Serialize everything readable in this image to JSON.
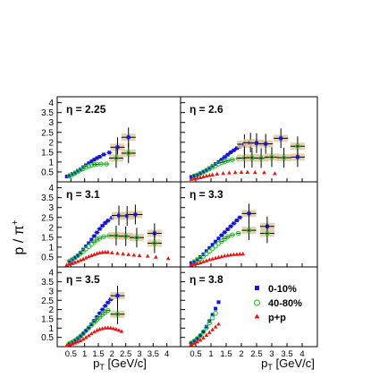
{
  "figure": {
    "ylabel_main": "p / π",
    "ylabel_sup": "+",
    "xlabel_main": "p",
    "xlabel_sub": "T",
    "xlabel_unit": " [GeV/c]"
  },
  "legend": {
    "items": [
      {
        "label": "0-10%",
        "marker": "square",
        "color": "#1414e6"
      },
      {
        "label": "40-80%",
        "marker": "open-circle",
        "color": "#22cc22"
      },
      {
        "label": "p+p",
        "marker": "triangle",
        "color": "#ee1111"
      }
    ]
  },
  "chart_data": [
    {
      "type": "scatter",
      "title": "η = 2.25",
      "xlim": [
        0,
        4.5
      ],
      "ylim": [
        0,
        4.3
      ],
      "x_ticks": [],
      "y_ticks": [
        0.5,
        1,
        1.5,
        2,
        2.5,
        3,
        3.5,
        4
      ],
      "series": [
        {
          "name": "0-10%",
          "color": "#1414e6",
          "marker": "square",
          "x": [
            0.35,
            0.45,
            0.55,
            0.65,
            0.75,
            0.85,
            0.95,
            1.05,
            1.15,
            1.25,
            1.35,
            1.45,
            1.55,
            1.7,
            1.9,
            2.2,
            2.6
          ],
          "y": [
            0.27,
            0.33,
            0.4,
            0.47,
            0.56,
            0.64,
            0.74,
            0.84,
            0.94,
            1.03,
            1.12,
            1.2,
            1.27,
            1.38,
            1.48,
            1.75,
            2.25
          ]
        },
        {
          "name": "40-80%",
          "color": "#22cc22",
          "marker": "open-circle",
          "x": [
            0.45,
            0.55,
            0.65,
            0.75,
            0.85,
            0.95,
            1.05,
            1.15,
            1.25,
            1.35,
            1.45,
            1.6,
            1.8,
            2.15,
            2.6
          ],
          "y": [
            0.3,
            0.36,
            0.44,
            0.52,
            0.6,
            0.67,
            0.74,
            0.79,
            0.84,
            0.87,
            0.89,
            0.9,
            0.9,
            1.2,
            1.45
          ]
        }
      ]
    },
    {
      "type": "scatter",
      "title": "η = 2.6",
      "xlim": [
        0,
        4.5
      ],
      "ylim": [
        0,
        4.3
      ],
      "x_ticks": [],
      "y_ticks": [],
      "series": [
        {
          "name": "0-10%",
          "color": "#1414e6",
          "marker": "square",
          "x": [
            0.35,
            0.45,
            0.55,
            0.65,
            0.75,
            0.85,
            0.95,
            1.05,
            1.15,
            1.25,
            1.35,
            1.45,
            1.55,
            1.65,
            1.75,
            1.85,
            1.95,
            2.1,
            2.3,
            2.5,
            2.8,
            3.3,
            3.85
          ],
          "y": [
            0.25,
            0.3,
            0.36,
            0.44,
            0.52,
            0.6,
            0.7,
            0.8,
            0.9,
            1.0,
            1.12,
            1.25,
            1.37,
            1.49,
            1.59,
            1.7,
            1.79,
            1.9,
            1.98,
            1.96,
            1.92,
            2.2,
            1.25
          ]
        },
        {
          "name": "40-80%",
          "color": "#22cc22",
          "marker": "open-circle",
          "x": [
            0.45,
            0.55,
            0.65,
            0.75,
            0.85,
            0.95,
            1.05,
            1.15,
            1.25,
            1.35,
            1.45,
            1.55,
            1.7,
            1.9,
            2.1,
            2.35,
            2.65,
            3.0,
            3.4,
            3.85
          ],
          "y": [
            0.3,
            0.35,
            0.42,
            0.5,
            0.58,
            0.66,
            0.74,
            0.82,
            0.9,
            0.97,
            1.02,
            1.07,
            1.12,
            1.18,
            1.2,
            1.22,
            1.2,
            1.25,
            1.22,
            1.8
          ]
        },
        {
          "name": "p+p",
          "color": "#ee1111",
          "marker": "triangle",
          "x": [
            0.35,
            0.45,
            0.55,
            0.65,
            0.75,
            0.85,
            0.95,
            1.05,
            1.2,
            1.4,
            1.6,
            1.8,
            2.0,
            2.2,
            2.45,
            2.75,
            3.1
          ],
          "y": [
            0.13,
            0.16,
            0.19,
            0.22,
            0.26,
            0.3,
            0.33,
            0.36,
            0.4,
            0.43,
            0.46,
            0.48,
            0.49,
            0.49,
            0.48,
            0.47,
            0.42
          ]
        }
      ]
    },
    {
      "type": "scatter",
      "title": "η = 3.1",
      "xlim": [
        0,
        4.5
      ],
      "ylim": [
        0,
        4.3
      ],
      "x_ticks": [],
      "y_ticks": [
        0.5,
        1,
        1.5,
        2,
        2.5,
        3,
        3.5,
        4
      ],
      "series": [
        {
          "name": "0-10%",
          "color": "#1414e6",
          "marker": "square",
          "x": [
            0.45,
            0.55,
            0.65,
            0.75,
            0.85,
            0.95,
            1.05,
            1.15,
            1.25,
            1.35,
            1.45,
            1.55,
            1.65,
            1.75,
            1.85,
            2.0,
            2.25,
            2.55,
            2.85,
            3.55
          ],
          "y": [
            0.25,
            0.34,
            0.45,
            0.58,
            0.72,
            0.88,
            1.04,
            1.2,
            1.38,
            1.56,
            1.74,
            1.92,
            2.08,
            2.22,
            2.34,
            2.48,
            2.6,
            2.58,
            2.65,
            1.7
          ]
        },
        {
          "name": "40-80%",
          "color": "#22cc22",
          "marker": "open-circle",
          "x": [
            0.45,
            0.55,
            0.65,
            0.75,
            0.85,
            0.95,
            1.05,
            1.15,
            1.25,
            1.35,
            1.45,
            1.55,
            1.7,
            1.9,
            2.15,
            2.5,
            2.9,
            3.55
          ],
          "y": [
            0.3,
            0.38,
            0.47,
            0.57,
            0.68,
            0.79,
            0.91,
            1.03,
            1.15,
            1.26,
            1.36,
            1.45,
            1.53,
            1.58,
            1.58,
            1.55,
            1.48,
            1.2
          ]
        },
        {
          "name": "p+p",
          "color": "#ee1111",
          "marker": "triangle",
          "x": [
            0.35,
            0.45,
            0.55,
            0.65,
            0.75,
            0.85,
            0.95,
            1.05,
            1.15,
            1.25,
            1.35,
            1.45,
            1.55,
            1.65,
            1.75,
            1.85,
            2.0,
            2.2,
            2.4,
            2.6,
            2.8,
            3.0,
            3.3,
            3.6,
            4.05
          ],
          "y": [
            0.1,
            0.14,
            0.18,
            0.23,
            0.28,
            0.34,
            0.4,
            0.46,
            0.52,
            0.58,
            0.63,
            0.68,
            0.72,
            0.74,
            0.75,
            0.75,
            0.72,
            0.69,
            0.66,
            0.63,
            0.6,
            0.58,
            0.55,
            0.5,
            0.43
          ]
        }
      ]
    },
    {
      "type": "scatter",
      "title": "η = 3.3",
      "xlim": [
        0,
        4.5
      ],
      "ylim": [
        0,
        4.3
      ],
      "x_ticks": [],
      "y_ticks": [],
      "series": [
        {
          "name": "0-10%",
          "color": "#1414e6",
          "marker": "square",
          "x": [
            0.35,
            0.45,
            0.55,
            0.65,
            0.75,
            0.85,
            0.95,
            1.05,
            1.15,
            1.25,
            1.35,
            1.45,
            1.55,
            1.65,
            1.75,
            1.85,
            1.95,
            2.25,
            2.85
          ],
          "y": [
            0.2,
            0.28,
            0.38,
            0.5,
            0.64,
            0.8,
            0.96,
            1.12,
            1.28,
            1.44,
            1.6,
            1.75,
            1.9,
            2.05,
            2.2,
            2.35,
            2.5,
            2.7,
            2.05
          ]
        },
        {
          "name": "40-80%",
          "color": "#22cc22",
          "marker": "open-circle",
          "x": [
            0.45,
            0.55,
            0.65,
            0.75,
            0.85,
            0.95,
            1.05,
            1.15,
            1.25,
            1.35,
            1.45,
            1.55,
            1.7,
            1.9,
            2.25,
            2.85
          ],
          "y": [
            0.25,
            0.33,
            0.43,
            0.54,
            0.66,
            0.79,
            0.92,
            1.05,
            1.18,
            1.3,
            1.42,
            1.52,
            1.62,
            1.7,
            1.85,
            1.7
          ]
        },
        {
          "name": "p+p",
          "color": "#ee1111",
          "marker": "triangle",
          "x": [
            0.35,
            0.45,
            0.55,
            0.65,
            0.75,
            0.85,
            0.95,
            1.05,
            1.15,
            1.25,
            1.35,
            1.45,
            1.55,
            1.65,
            1.75,
            1.85,
            1.95,
            2.05
          ],
          "y": [
            0.1,
            0.13,
            0.17,
            0.22,
            0.27,
            0.32,
            0.37,
            0.41,
            0.45,
            0.49,
            0.52,
            0.56,
            0.59,
            0.61,
            0.63,
            0.64,
            0.65,
            0.66
          ]
        }
      ]
    },
    {
      "type": "scatter",
      "title": "η = 3.5",
      "xlim": [
        0,
        4.5
      ],
      "ylim": [
        0,
        4.3
      ],
      "x_ticks": [
        0.5,
        1,
        1.5,
        2,
        2.5,
        3,
        3.5,
        4
      ],
      "y_ticks": [
        0.5,
        1,
        1.5,
        2,
        2.5,
        3,
        3.5,
        4
      ],
      "series": [
        {
          "name": "0-10%",
          "color": "#1414e6",
          "marker": "square",
          "x": [
            0.45,
            0.55,
            0.65,
            0.75,
            0.85,
            0.95,
            1.05,
            1.15,
            1.25,
            1.35,
            1.45,
            1.55,
            1.65,
            1.75,
            1.85,
            1.95,
            2.2
          ],
          "y": [
            0.15,
            0.22,
            0.31,
            0.42,
            0.55,
            0.7,
            0.86,
            1.03,
            1.21,
            1.4,
            1.6,
            1.8,
            2.0,
            2.2,
            2.38,
            2.55,
            2.75
          ]
        },
        {
          "name": "40-80%",
          "color": "#22cc22",
          "marker": "open-circle",
          "x": [
            0.45,
            0.55,
            0.65,
            0.75,
            0.85,
            0.95,
            1.05,
            1.15,
            1.25,
            1.35,
            1.45,
            1.55,
            1.65,
            1.75,
            1.85,
            2.2
          ],
          "y": [
            0.18,
            0.25,
            0.34,
            0.45,
            0.57,
            0.71,
            0.86,
            1.01,
            1.16,
            1.31,
            1.46,
            1.6,
            1.73,
            1.85,
            1.95,
            1.75
          ]
        },
        {
          "name": "p+p",
          "color": "#ee1111",
          "marker": "triangle",
          "x": [
            0.35,
            0.45,
            0.55,
            0.65,
            0.75,
            0.85,
            0.95,
            1.05,
            1.15,
            1.25,
            1.35,
            1.45,
            1.55,
            1.65,
            1.75,
            1.85,
            1.95,
            2.05,
            2.15,
            2.25,
            2.35
          ],
          "y": [
            0.08,
            0.11,
            0.15,
            0.2,
            0.26,
            0.33,
            0.41,
            0.5,
            0.6,
            0.7,
            0.8,
            0.88,
            0.94,
            0.98,
            1.01,
            1.02,
            1.01,
            0.98,
            0.94,
            0.89,
            0.83
          ]
        }
      ]
    },
    {
      "type": "scatter",
      "title": "η = 3.8",
      "xlim": [
        0,
        4.5
      ],
      "ylim": [
        0,
        4.3
      ],
      "x_ticks": [
        0.5,
        1,
        1.5,
        2,
        2.5,
        3,
        3.5,
        4
      ],
      "y_ticks": [],
      "series": [
        {
          "name": "0-10%",
          "color": "#1414e6",
          "marker": "square",
          "x": [
            0.35,
            0.45,
            0.55,
            0.65,
            0.75,
            0.85,
            0.95,
            1.05,
            1.15,
            1.25
          ],
          "y": [
            0.18,
            0.28,
            0.42,
            0.6,
            0.82,
            1.08,
            1.38,
            1.72,
            2.05,
            2.4
          ]
        },
        {
          "name": "40-80%",
          "color": "#22cc22",
          "marker": "open-circle",
          "x": [
            0.35,
            0.45,
            0.55,
            0.65,
            0.75,
            0.85,
            0.95,
            1.05,
            1.15
          ],
          "y": [
            0.2,
            0.3,
            0.44,
            0.6,
            0.8,
            1.02,
            1.28,
            1.55,
            1.8
          ]
        },
        {
          "name": "p+p",
          "color": "#ee1111",
          "marker": "triangle",
          "x": [
            0.35,
            0.45,
            0.55,
            0.65,
            0.75,
            0.85,
            0.95,
            1.05,
            1.15,
            1.25
          ],
          "y": [
            0.12,
            0.18,
            0.26,
            0.36,
            0.48,
            0.62,
            0.77,
            0.92,
            1.07,
            1.22
          ]
        }
      ]
    }
  ]
}
